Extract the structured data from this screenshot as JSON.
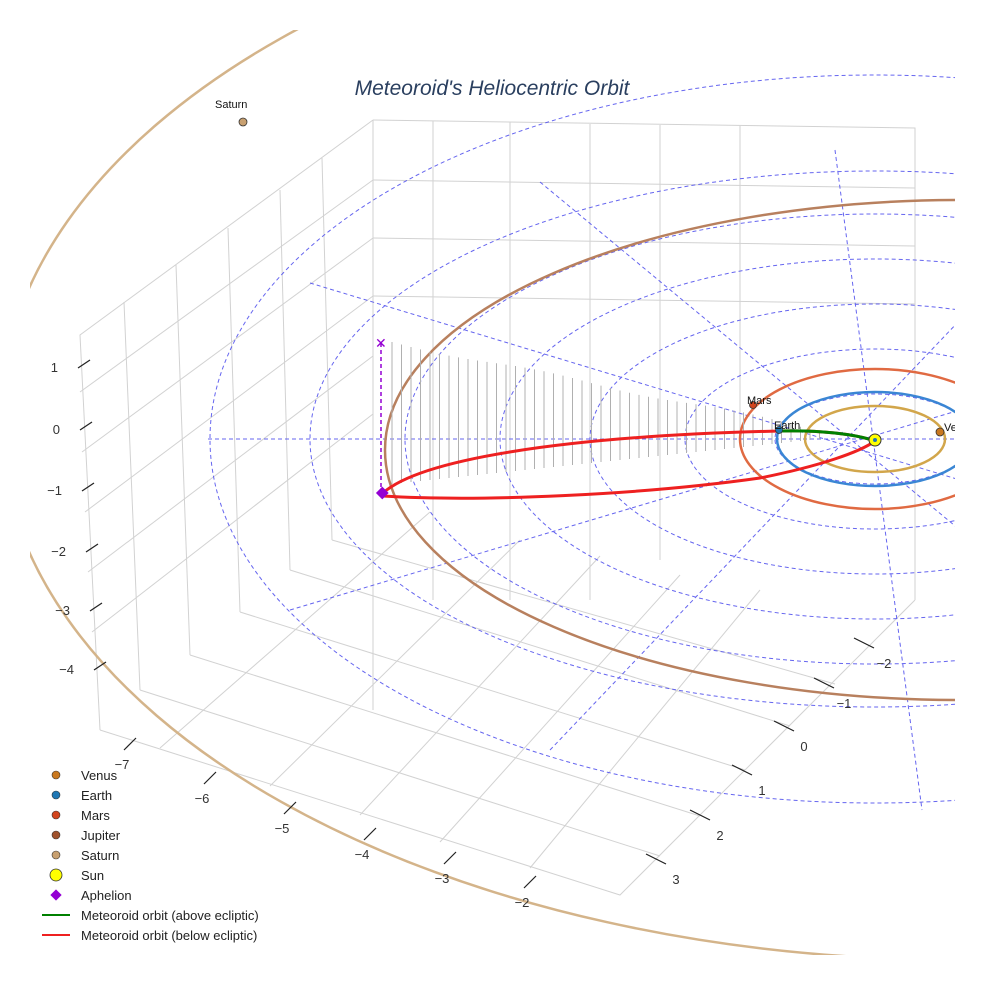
{
  "chart_data": {
    "type": "scatter3d",
    "title": "Meteoroid's Heliocentric Orbit",
    "axes": {
      "x_ticks": [
        "−7",
        "−6",
        "−5",
        "−4",
        "−3",
        "−2"
      ],
      "y_ticks": [
        "−2",
        "−1",
        "0",
        "1",
        "2",
        "3"
      ],
      "z_ticks": [
        "1",
        "0",
        "−1",
        "−2",
        "−3",
        "−4"
      ],
      "grid": true
    },
    "planets": [
      {
        "name": "Venus",
        "color": "#c9781f",
        "label": "Venus"
      },
      {
        "name": "Earth",
        "color": "#1f77b4",
        "label": "Earth"
      },
      {
        "name": "Mars",
        "color": "#d2451e",
        "label": "Mars"
      },
      {
        "name": "Jupiter",
        "color": "#a0522d",
        "label": ""
      },
      {
        "name": "Saturn",
        "color": "#c8a070",
        "label": "Saturn"
      }
    ],
    "orbit_colors": {
      "venus": "#d2a64b",
      "earth": "#3a86d4",
      "mars": "#e06a42",
      "jupiter": "#b8805e",
      "saturn": "#d4b48a"
    },
    "sun": {
      "name": "Sun",
      "color": "#ffff00"
    },
    "aphelion": {
      "name": "Aphelion",
      "color": "#9400d3"
    },
    "meteoroid_above": {
      "name": "Meteoroid orbit (above ecliptic)",
      "color": "#008000"
    },
    "meteoroid_below": {
      "name": "Meteoroid orbit (below ecliptic)",
      "color": "#ee2020"
    },
    "ecliptic_grid_color": "#5555ee",
    "legend_position": "bottom-left",
    "legend": [
      {
        "label": "Venus",
        "symbol": "circle",
        "color": "#c9781f"
      },
      {
        "label": "Earth",
        "symbol": "circle",
        "color": "#1f77b4"
      },
      {
        "label": "Mars",
        "symbol": "circle",
        "color": "#d2451e"
      },
      {
        "label": "Jupiter",
        "symbol": "circle",
        "color": "#a0522d"
      },
      {
        "label": "Saturn",
        "symbol": "circle",
        "color": "#c8a070"
      },
      {
        "label": "Sun",
        "symbol": "circle-big",
        "color": "#ffff00"
      },
      {
        "label": "Aphelion",
        "symbol": "diamond",
        "color": "#9400d3"
      },
      {
        "label": "Meteoroid orbit (above ecliptic)",
        "symbol": "line",
        "color": "#008000"
      },
      {
        "label": "Meteoroid orbit (below ecliptic)",
        "symbol": "line",
        "color": "#ee2020"
      }
    ]
  }
}
